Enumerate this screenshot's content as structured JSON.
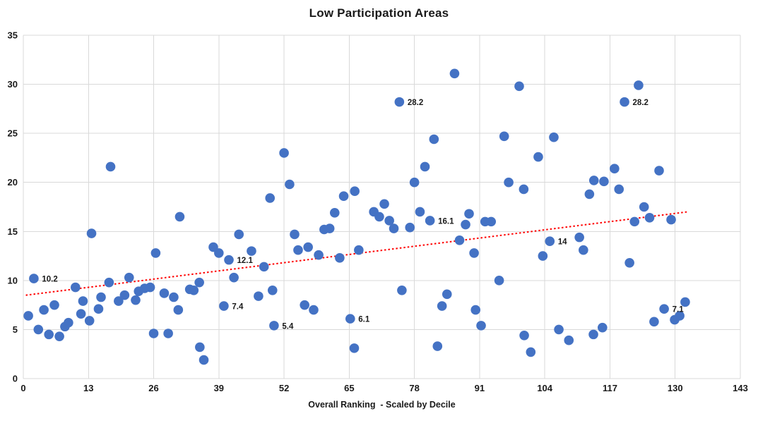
{
  "title": "Low Participation Areas",
  "chart_data": {
    "type": "scatter",
    "title": "Low Participation Areas",
    "xlabel": "Overall Ranking  - Scaled by Decile",
    "ylabel": "",
    "xlim": [
      0,
      143
    ],
    "ylim": [
      0,
      35
    ],
    "x_ticks": [
      0,
      13,
      26,
      39,
      52,
      65,
      78,
      91,
      104,
      117,
      130,
      143
    ],
    "y_ticks": [
      0,
      5,
      10,
      15,
      20,
      25,
      30,
      35
    ],
    "grid": true,
    "legend": false,
    "marker_color": "#4472C4",
    "gridline_color": "#D9D9D9",
    "text_color": "#1a1a1a",
    "trendline": {
      "type": "linear-fit",
      "style": "dotted",
      "color": "#FF0000",
      "x1": 0.5,
      "y1": 8.5,
      "x2": 132.5,
      "y2": 17.0
    },
    "points": [
      [
        1.0,
        6.4
      ],
      [
        2.1,
        10.2,
        "10.2"
      ],
      [
        3.0,
        5.0
      ],
      [
        4.1,
        7.0
      ],
      [
        5.1,
        4.5
      ],
      [
        6.2,
        7.5
      ],
      [
        7.2,
        4.3
      ],
      [
        8.3,
        5.3
      ],
      [
        9.0,
        5.7
      ],
      [
        10.4,
        9.3
      ],
      [
        11.5,
        6.6
      ],
      [
        11.9,
        7.9
      ],
      [
        13.2,
        5.9
      ],
      [
        13.6,
        14.8
      ],
      [
        15.0,
        7.1
      ],
      [
        15.5,
        8.3
      ],
      [
        17.1,
        9.8
      ],
      [
        17.4,
        21.6
      ],
      [
        19.0,
        7.9
      ],
      [
        20.2,
        8.5
      ],
      [
        21.1,
        10.3
      ],
      [
        22.4,
        8.0
      ],
      [
        23.0,
        8.9
      ],
      [
        24.2,
        9.2
      ],
      [
        25.3,
        9.3
      ],
      [
        26.0,
        4.6
      ],
      [
        26.4,
        12.8
      ],
      [
        28.1,
        8.7
      ],
      [
        28.9,
        4.6
      ],
      [
        30.0,
        8.3
      ],
      [
        30.9,
        7.0
      ],
      [
        31.2,
        16.5
      ],
      [
        33.2,
        9.1
      ],
      [
        34.0,
        9.0
      ],
      [
        35.1,
        9.8
      ],
      [
        35.2,
        3.2
      ],
      [
        36.0,
        1.9
      ],
      [
        37.9,
        13.4
      ],
      [
        39.0,
        12.8
      ],
      [
        40.0,
        7.4,
        "7.4"
      ],
      [
        41.0,
        12.1,
        "12.1"
      ],
      [
        42.0,
        10.3
      ],
      [
        43.0,
        14.7
      ],
      [
        45.5,
        13.0
      ],
      [
        46.9,
        8.4
      ],
      [
        48.0,
        11.4
      ],
      [
        49.2,
        18.4
      ],
      [
        49.7,
        9.0
      ],
      [
        50.0,
        5.4,
        "5.4"
      ],
      [
        52.0,
        23.0
      ],
      [
        53.1,
        19.8
      ],
      [
        54.1,
        14.7
      ],
      [
        54.8,
        13.1
      ],
      [
        56.1,
        7.5
      ],
      [
        56.8,
        13.4
      ],
      [
        57.9,
        7.0
      ],
      [
        58.9,
        12.6
      ],
      [
        60.0,
        15.2
      ],
      [
        61.1,
        15.3
      ],
      [
        62.1,
        16.9
      ],
      [
        63.1,
        12.3
      ],
      [
        63.9,
        18.6
      ],
      [
        65.2,
        6.1,
        "6.1"
      ],
      [
        66.0,
        3.1
      ],
      [
        66.1,
        19.1
      ],
      [
        66.9,
        13.1
      ],
      [
        69.9,
        17.0
      ],
      [
        71.0,
        16.5
      ],
      [
        72.0,
        17.8
      ],
      [
        73.0,
        16.1
      ],
      [
        73.9,
        15.3
      ],
      [
        75.0,
        28.2,
        "28.2"
      ],
      [
        75.5,
        9.0
      ],
      [
        77.1,
        15.4
      ],
      [
        78.0,
        20.0
      ],
      [
        79.1,
        17.0
      ],
      [
        80.1,
        21.6
      ],
      [
        81.1,
        16.1,
        "16.1"
      ],
      [
        81.9,
        24.4
      ],
      [
        82.6,
        3.3
      ],
      [
        83.5,
        7.4
      ],
      [
        84.5,
        8.6
      ],
      [
        86.0,
        31.1
      ],
      [
        87.0,
        14.1
      ],
      [
        88.2,
        15.7
      ],
      [
        88.9,
        16.8
      ],
      [
        89.9,
        12.8
      ],
      [
        90.2,
        7.0
      ],
      [
        91.3,
        5.4
      ],
      [
        92.1,
        16.0
      ],
      [
        93.3,
        16.0
      ],
      [
        94.9,
        10.0
      ],
      [
        95.9,
        24.7
      ],
      [
        96.8,
        20.0
      ],
      [
        98.9,
        29.8
      ],
      [
        99.8,
        19.3
      ],
      [
        99.9,
        4.4
      ],
      [
        101.2,
        2.7
      ],
      [
        102.7,
        22.6
      ],
      [
        103.6,
        12.5
      ],
      [
        105.0,
        14.0,
        "14"
      ],
      [
        105.8,
        24.6
      ],
      [
        106.8,
        5.0
      ],
      [
        108.8,
        3.9
      ],
      [
        110.9,
        14.4
      ],
      [
        111.7,
        13.1
      ],
      [
        112.9,
        18.8
      ],
      [
        113.7,
        4.5
      ],
      [
        113.8,
        20.2
      ],
      [
        115.5,
        5.2
      ],
      [
        115.8,
        20.1
      ],
      [
        117.9,
        21.4
      ],
      [
        118.8,
        19.3
      ],
      [
        119.9,
        28.2,
        "28.2"
      ],
      [
        120.9,
        11.8
      ],
      [
        121.9,
        16.0
      ],
      [
        122.7,
        29.9
      ],
      [
        123.8,
        17.5
      ],
      [
        124.9,
        16.4
      ],
      [
        125.8,
        5.8
      ],
      [
        126.8,
        21.2
      ],
      [
        127.8,
        7.1,
        "7.1"
      ],
      [
        129.2,
        16.2
      ],
      [
        129.9,
        6.0
      ],
      [
        130.9,
        6.4
      ],
      [
        132.0,
        7.8
      ]
    ]
  }
}
